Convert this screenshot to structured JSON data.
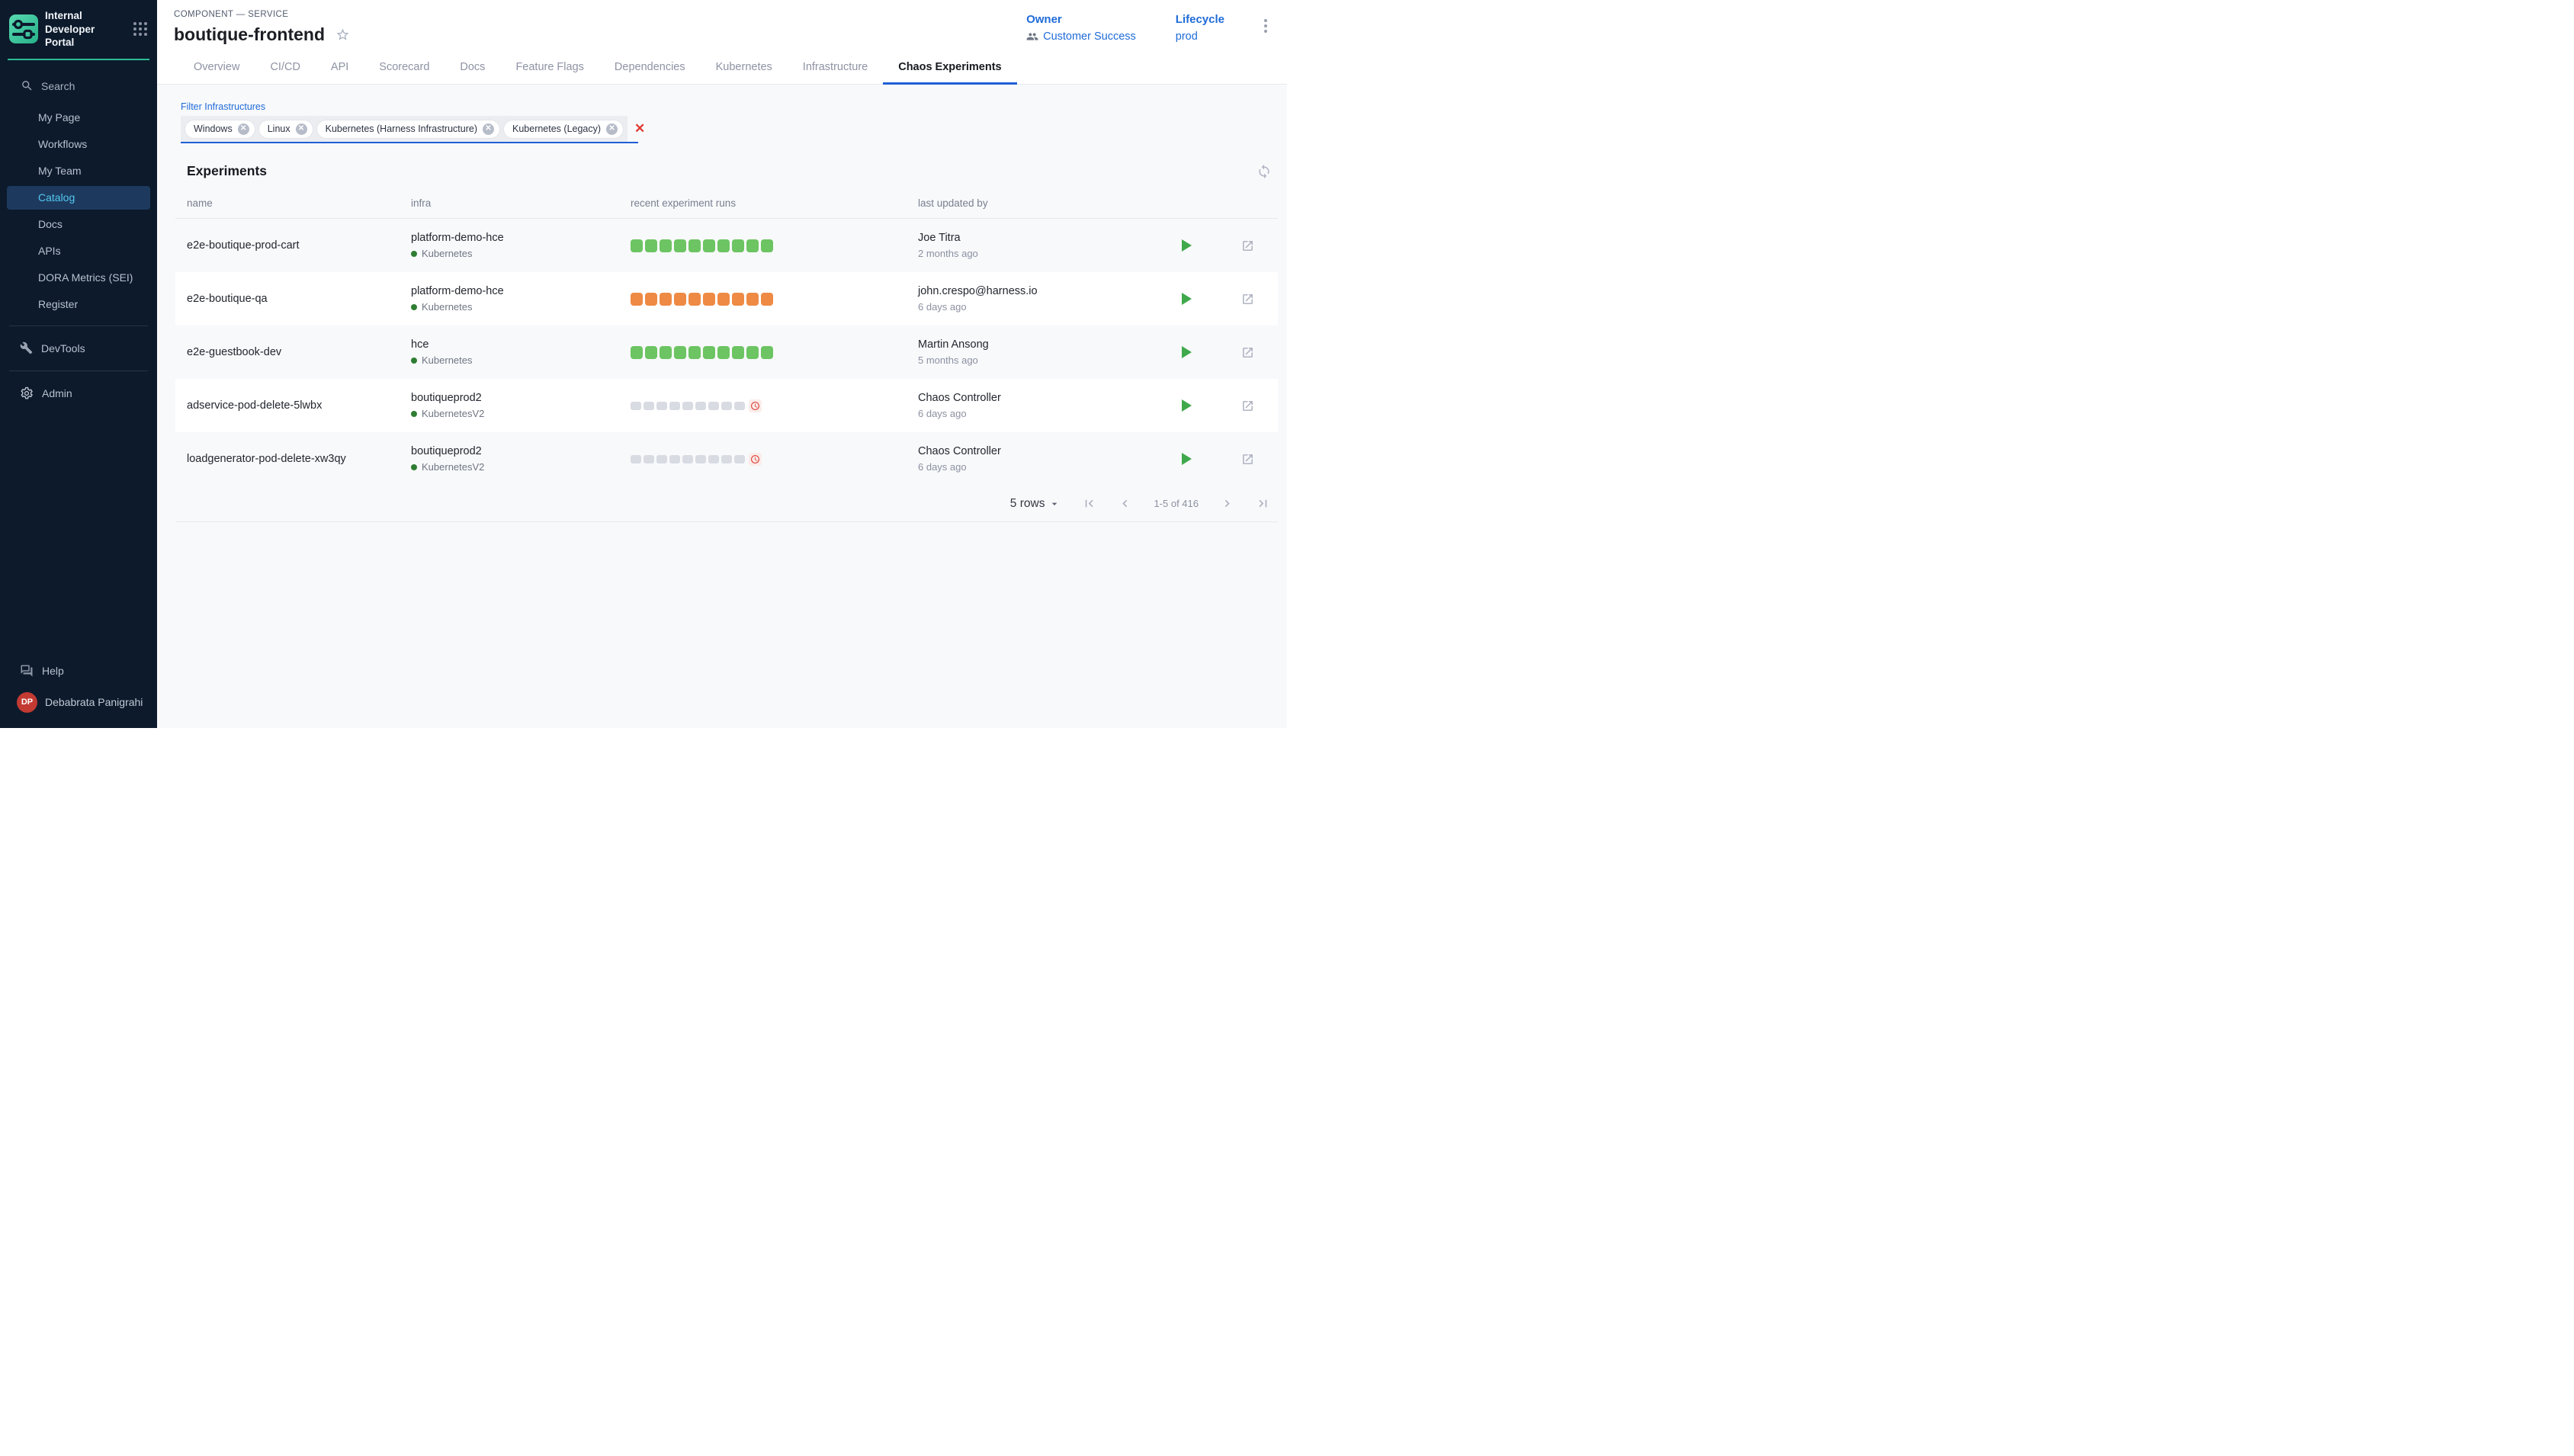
{
  "sidebar": {
    "logo_title": "Internal Developer Portal",
    "search_label": "Search",
    "nav": [
      {
        "label": "My Page",
        "active": false
      },
      {
        "label": "Workflows",
        "active": false
      },
      {
        "label": "My Team",
        "active": false
      },
      {
        "label": "Catalog",
        "active": true
      },
      {
        "label": "Docs",
        "active": false
      },
      {
        "label": "APIs",
        "active": false
      },
      {
        "label": "DORA Metrics (SEI)",
        "active": false
      },
      {
        "label": "Register",
        "active": false
      }
    ],
    "devtools_label": "DevTools",
    "admin_label": "Admin",
    "help_label": "Help",
    "user": {
      "initials": "DP",
      "name": "Debabrata Panigrahi"
    }
  },
  "header": {
    "eyebrow": "COMPONENT — SERVICE",
    "title": "boutique-frontend",
    "owner_label": "Owner",
    "owner_value": "Customer Success",
    "lifecycle_label": "Lifecycle",
    "lifecycle_value": "prod"
  },
  "tabs": [
    {
      "label": "Overview",
      "active": false
    },
    {
      "label": "CI/CD",
      "active": false
    },
    {
      "label": "API",
      "active": false
    },
    {
      "label": "Scorecard",
      "active": false
    },
    {
      "label": "Docs",
      "active": false
    },
    {
      "label": "Feature Flags",
      "active": false
    },
    {
      "label": "Dependencies",
      "active": false
    },
    {
      "label": "Kubernetes",
      "active": false
    },
    {
      "label": "Infrastructure",
      "active": false
    },
    {
      "label": "Chaos Experiments",
      "active": true
    }
  ],
  "filter": {
    "label": "Filter Infrastructures",
    "chips": [
      "Windows",
      "Linux",
      "Kubernetes (Harness Infrastructure)",
      "Kubernetes (Legacy)"
    ]
  },
  "experiments": {
    "title": "Experiments",
    "columns": [
      "name",
      "infra",
      "recent experiment runs",
      "last updated by"
    ],
    "rows": [
      {
        "name": "e2e-boutique-prod-cart",
        "infra": "platform-demo-hce",
        "infra_type": "Kubernetes",
        "runs": {
          "color": "green",
          "count": 10,
          "overdue": false
        },
        "updated_by": "Joe Titra",
        "updated_at": "2 months ago"
      },
      {
        "name": "e2e-boutique-qa",
        "infra": "platform-demo-hce",
        "infra_type": "Kubernetes",
        "runs": {
          "color": "orange",
          "count": 10,
          "overdue": false
        },
        "updated_by": "john.crespo@harness.io",
        "updated_at": "6 days ago"
      },
      {
        "name": "e2e-guestbook-dev",
        "infra": "hce",
        "infra_type": "Kubernetes",
        "runs": {
          "color": "green",
          "count": 10,
          "overdue": false
        },
        "updated_by": "Martin Ansong",
        "updated_at": "5 months ago"
      },
      {
        "name": "adservice-pod-delete-5lwbx",
        "infra": "boutiqueprod2",
        "infra_type": "KubernetesV2",
        "runs": {
          "color": "gray",
          "count": 9,
          "overdue": true
        },
        "updated_by": "Chaos Controller",
        "updated_at": "6 days ago"
      },
      {
        "name": "loadgenerator-pod-delete-xw3qy",
        "infra": "boutiqueprod2",
        "infra_type": "KubernetesV2",
        "runs": {
          "color": "gray",
          "count": 9,
          "overdue": true
        },
        "updated_by": "Chaos Controller",
        "updated_at": "6 days ago"
      }
    ],
    "pagination": {
      "rows_label": "5 rows",
      "range": "1-5 of 416"
    }
  },
  "colors": {
    "accent_blue": "#1f6bd8",
    "teal": "#2cbb92",
    "sidebar_bg": "#0c1a2c",
    "run_passed_green": "#6cc462",
    "run_failed_orange": "#ee8a44",
    "run_pending_gray": "#d9dbe3",
    "overdue_red": "#df3c32",
    "avatar_red": "#c23a32"
  }
}
